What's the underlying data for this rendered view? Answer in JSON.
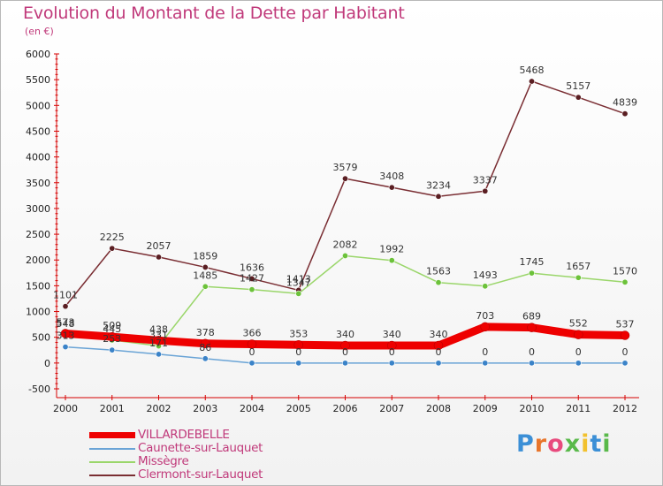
{
  "chart_data": {
    "type": "line",
    "title": "Evolution du Montant de la Dette par Habitant",
    "subtitle": "(en €)",
    "categories": [
      "2000",
      "2001",
      "2002",
      "2003",
      "2004",
      "2005",
      "2006",
      "2007",
      "2008",
      "2009",
      "2010",
      "2011",
      "2012"
    ],
    "ylim": [
      -500,
      6000
    ],
    "yticks": [
      "-500",
      "0",
      "500",
      "1000",
      "1500",
      "2000",
      "2500",
      "3000",
      "3500",
      "4000",
      "4500",
      "5000",
      "5500",
      "6000"
    ],
    "grid": false,
    "legend_position": "bottom-left",
    "series": [
      {
        "name": "VILLARDEBELLE",
        "color": "#ee0000",
        "values": [
          573,
          509,
          438,
          378,
          366,
          353,
          340,
          340,
          340,
          703,
          689,
          552,
          537
        ]
      },
      {
        "name": "Caunette-sur-Lauquet",
        "color": "#6aa4d6",
        "values": [
          313,
          253,
          171,
          86,
          0,
          0,
          0,
          0,
          0,
          0,
          0,
          0,
          0
        ]
      },
      {
        "name": "Missègre",
        "color": "#9ad66a",
        "values": [
          548,
          445,
          331,
          1485,
          1427,
          1347,
          2082,
          1992,
          1563,
          1493,
          1745,
          1657,
          1570
        ]
      },
      {
        "name": "Clermont-sur-Lauquet",
        "color": "#7a2e33",
        "values": [
          1101,
          2225,
          2057,
          1859,
          1636,
          1413,
          3579,
          3408,
          3234,
          3337,
          5468,
          5157,
          4839
        ]
      }
    ]
  },
  "logo": {
    "text": "Proxiti"
  }
}
